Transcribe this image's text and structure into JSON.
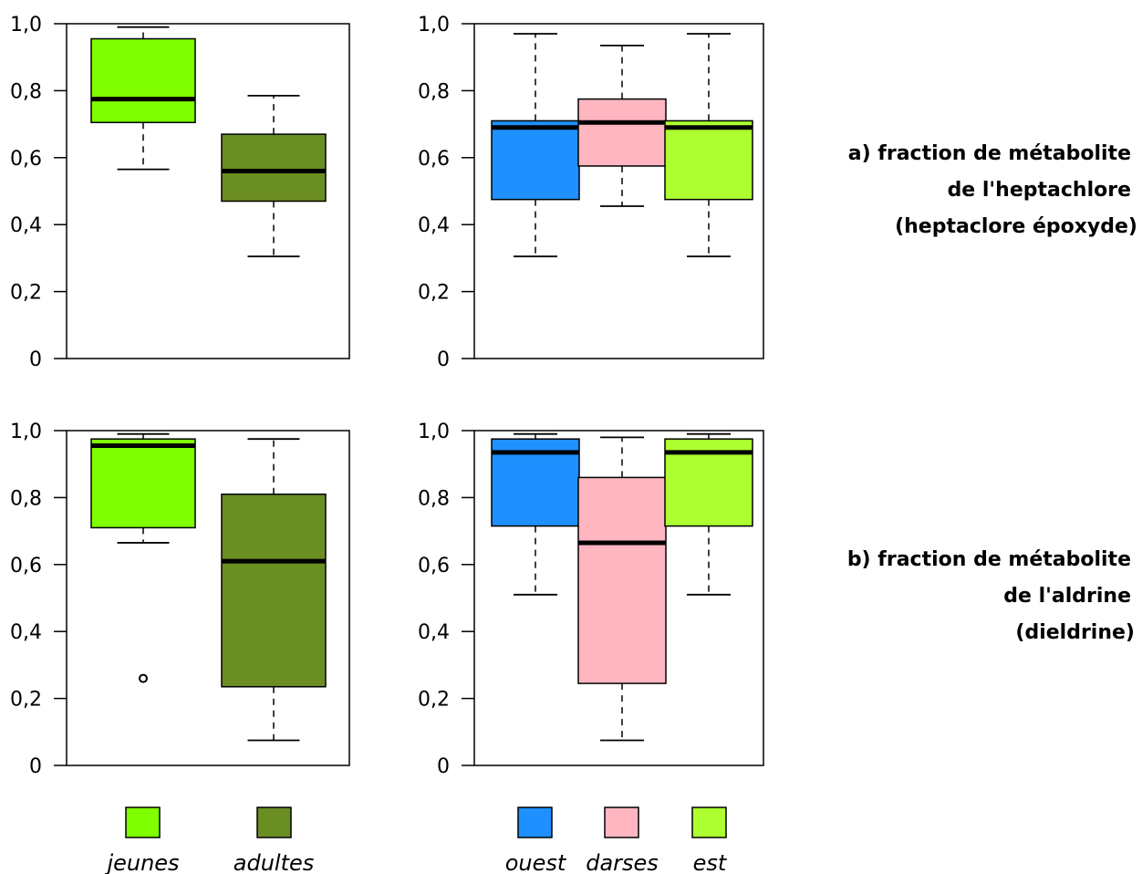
{
  "chart_data": [
    {
      "type": "boxplot",
      "id": "a-age",
      "ylim": [
        0,
        1
      ],
      "yticks": [
        "0",
        "0,2",
        "0,4",
        "0,6",
        "0,8",
        "1,0"
      ],
      "groups": [
        {
          "name": "jeunes",
          "color": "#7fff00",
          "whisker_low": 0.565,
          "q1": 0.705,
          "median": 0.775,
          "q3": 0.955,
          "whisker_high": 0.99,
          "outliers": []
        },
        {
          "name": "adultes",
          "color": "#6b8e23",
          "whisker_low": 0.305,
          "q1": 0.47,
          "median": 0.56,
          "q3": 0.67,
          "whisker_high": 0.785,
          "outliers": []
        }
      ]
    },
    {
      "type": "boxplot",
      "id": "a-site",
      "ylim": [
        0,
        1
      ],
      "yticks": [
        "0",
        "0,2",
        "0,4",
        "0,6",
        "0,8",
        "1,0"
      ],
      "groups": [
        {
          "name": "ouest",
          "color": "#1e90ff",
          "whisker_low": 0.305,
          "q1": 0.475,
          "median": 0.69,
          "q3": 0.71,
          "whisker_high": 0.97,
          "outliers": []
        },
        {
          "name": "darses",
          "color": "#ffb6c1",
          "whisker_low": 0.455,
          "q1": 0.575,
          "median": 0.705,
          "q3": 0.775,
          "whisker_high": 0.935,
          "outliers": []
        },
        {
          "name": "est",
          "color": "#adff2f",
          "whisker_low": 0.305,
          "q1": 0.475,
          "median": 0.69,
          "q3": 0.71,
          "whisker_high": 0.97,
          "outliers": []
        }
      ]
    },
    {
      "type": "boxplot",
      "id": "b-age",
      "ylim": [
        0,
        1
      ],
      "yticks": [
        "0",
        "0,2",
        "0,4",
        "0,6",
        "0,8",
        "1,0"
      ],
      "groups": [
        {
          "name": "jeunes",
          "color": "#7fff00",
          "whisker_low": 0.665,
          "q1": 0.71,
          "median": 0.955,
          "q3": 0.975,
          "whisker_high": 0.99,
          "outliers": [
            0.26
          ]
        },
        {
          "name": "adultes",
          "color": "#6b8e23",
          "whisker_low": 0.075,
          "q1": 0.235,
          "median": 0.61,
          "q3": 0.81,
          "whisker_high": 0.975,
          "outliers": []
        }
      ]
    },
    {
      "type": "boxplot",
      "id": "b-site",
      "ylim": [
        0,
        1
      ],
      "yticks": [
        "0",
        "0,2",
        "0,4",
        "0,6",
        "0,8",
        "1,0"
      ],
      "groups": [
        {
          "name": "ouest",
          "color": "#1e90ff",
          "whisker_low": 0.51,
          "q1": 0.715,
          "median": 0.935,
          "q3": 0.975,
          "whisker_high": 0.99,
          "outliers": []
        },
        {
          "name": "darses",
          "color": "#ffb6c1",
          "whisker_low": 0.075,
          "q1": 0.245,
          "median": 0.665,
          "q3": 0.86,
          "whisker_high": 0.98,
          "outliers": []
        },
        {
          "name": "est",
          "color": "#adff2f",
          "whisker_low": 0.51,
          "q1": 0.715,
          "median": 0.935,
          "q3": 0.975,
          "whisker_high": 0.99,
          "outliers": []
        }
      ]
    }
  ],
  "captions": {
    "a": [
      "a) fraction de métabolite",
      "de l'heptachlore",
      "(heptaclore époxyde)"
    ],
    "b": [
      "b) fraction de métabolite",
      "de l'aldrine",
      "(dieldrine)"
    ]
  },
  "legend_age": [
    {
      "label": "jeunes",
      "color": "#7fff00"
    },
    {
      "label": "adultes",
      "color": "#6b8e23"
    }
  ],
  "legend_site": [
    {
      "label": "ouest",
      "color": "#1e90ff"
    },
    {
      "label": "darses",
      "color": "#ffb6c1"
    },
    {
      "label": "est",
      "color": "#adff2f"
    }
  ]
}
